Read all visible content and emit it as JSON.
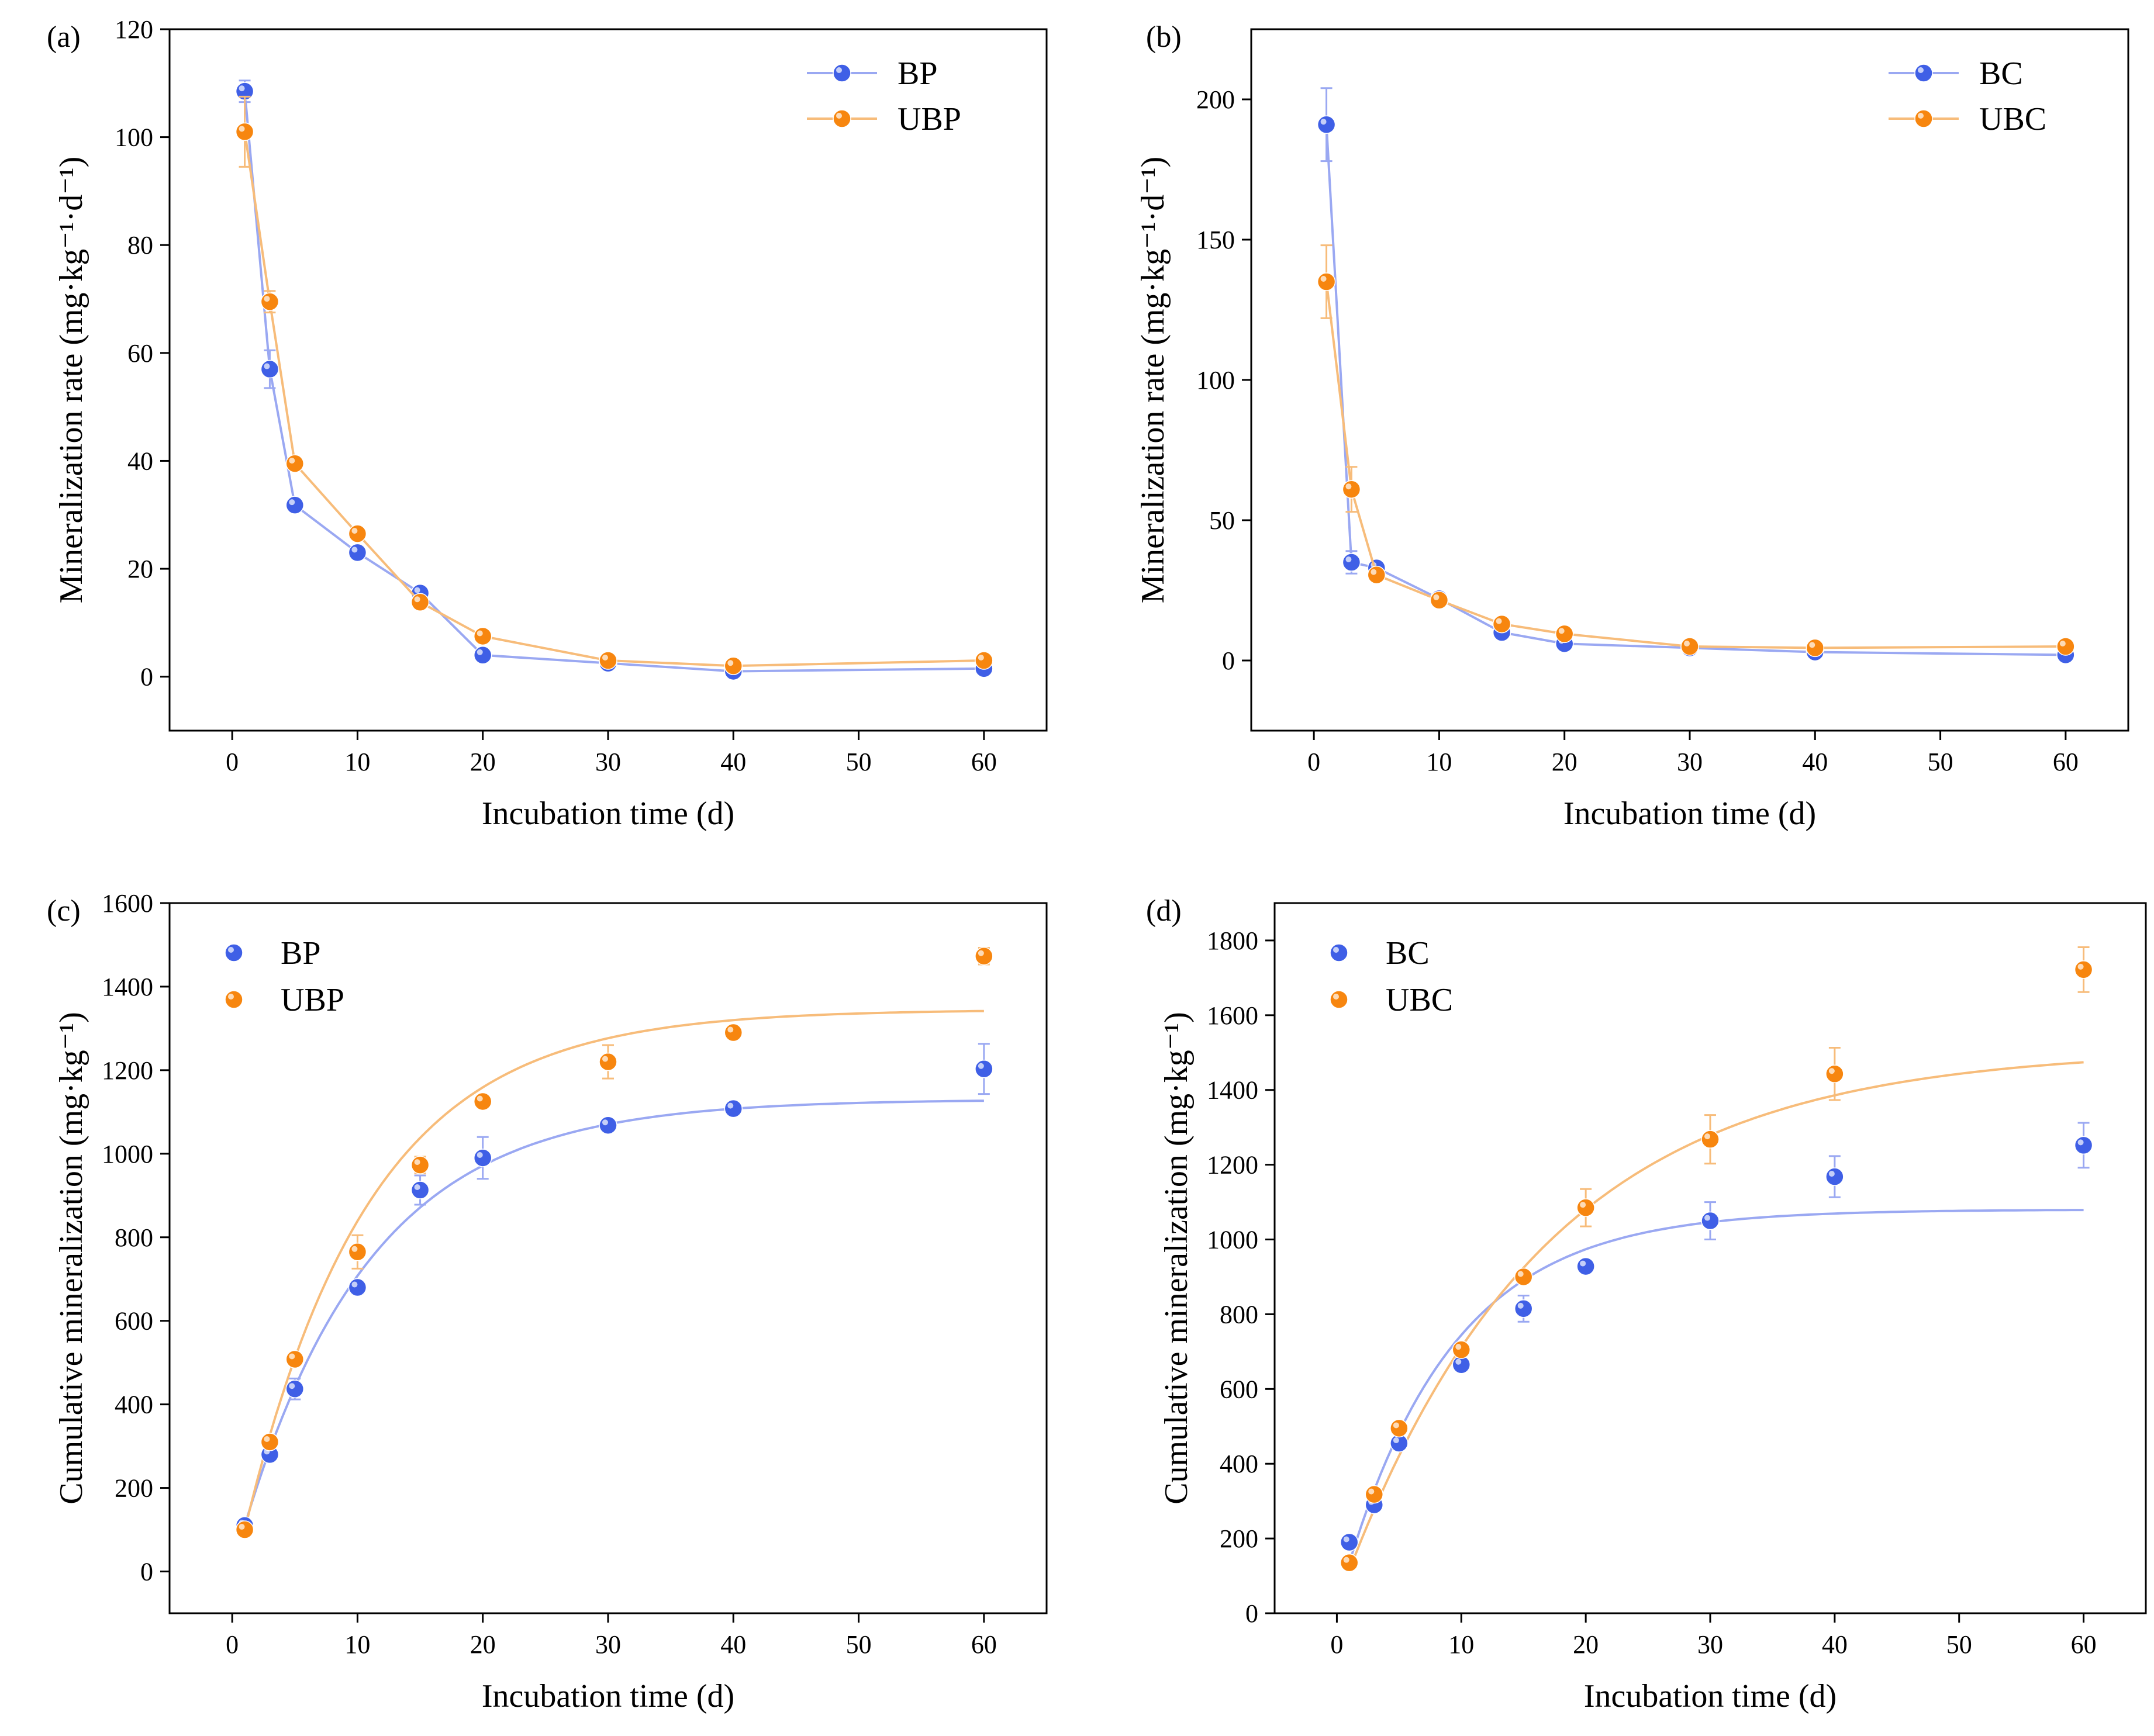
{
  "colors": {
    "blue": "#3f5fe6",
    "orange": "#f7860f",
    "blue_line": "#9aa8f2",
    "orange_line": "#f7bc7a",
    "axis": "#000000"
  },
  "chart_data": [
    {
      "type": "line",
      "panel_label": "(a)",
      "xlabel": "Incubation time (d)",
      "ylabel": "Mineralization rate (mg·kg⁻¹·d⁻¹)",
      "xlim": [
        -5,
        65
      ],
      "ylim": [
        -10,
        120
      ],
      "xticks": [
        0,
        10,
        20,
        30,
        40,
        50,
        60
      ],
      "yticks": [
        0,
        20,
        40,
        60,
        80,
        100,
        120
      ],
      "xtick_labels": [
        "0",
        "10",
        "20",
        "30",
        "40",
        "50",
        "60"
      ],
      "ytick_labels": [
        "0",
        "20",
        "40",
        "60",
        "80",
        "100",
        "120"
      ],
      "legend": [
        "BP",
        "UBP"
      ],
      "legend_position": "top-right",
      "legend_style": "line-marker",
      "series": [
        {
          "name": "BP",
          "color": "blue",
          "x": [
            1,
            3,
            5,
            10,
            15,
            20,
            30,
            40,
            60
          ],
          "y": [
            108.5,
            57,
            31.8,
            23,
            15.5,
            4,
            2.5,
            1,
            1.5
          ],
          "err": [
            2,
            3.5,
            1,
            1,
            0.8,
            0.5,
            0.3,
            0.3,
            0.4
          ]
        },
        {
          "name": "UBP",
          "color": "orange",
          "x": [
            1,
            3,
            5,
            10,
            15,
            20,
            30,
            40,
            60
          ],
          "y": [
            101,
            69.5,
            39.5,
            26.5,
            13.8,
            7.5,
            3,
            2,
            3
          ],
          "err": [
            6.5,
            2,
            1,
            1,
            0.8,
            0.5,
            0.3,
            0.3,
            0.4
          ]
        }
      ]
    },
    {
      "type": "line",
      "panel_label": "(b)",
      "xlabel": "Incubation time (d)",
      "ylabel": "Mineralization rate (mg·kg⁻¹·d⁻¹)",
      "xlim": [
        -5,
        65
      ],
      "ylim": [
        -25,
        225
      ],
      "xticks": [
        0,
        10,
        20,
        30,
        40,
        50,
        60
      ],
      "yticks": [
        0,
        50,
        100,
        150,
        200
      ],
      "xtick_labels": [
        "0",
        "10",
        "20",
        "30",
        "40",
        "50",
        "60"
      ],
      "ytick_labels": [
        "0",
        "50",
        "100",
        "150",
        "200"
      ],
      "legend": [
        "BC",
        "UBC"
      ],
      "legend_position": "top-right",
      "legend_style": "line-marker",
      "series": [
        {
          "name": "BC",
          "color": "blue",
          "x": [
            1,
            3,
            5,
            10,
            15,
            20,
            30,
            40,
            60
          ],
          "y": [
            191,
            35,
            33,
            22,
            10,
            6,
            4.5,
            3,
            2
          ],
          "err": [
            13,
            4,
            2,
            1,
            0.8,
            0.6,
            0.4,
            0.3,
            0.3
          ]
        },
        {
          "name": "UBC",
          "color": "orange",
          "x": [
            1,
            3,
            5,
            10,
            15,
            20,
            30,
            40,
            60
          ],
          "y": [
            135,
            61,
            30.5,
            21.5,
            13,
            9.5,
            5,
            4.5,
            5
          ],
          "err": [
            13,
            8,
            1,
            1,
            0.8,
            0.6,
            0.4,
            0.3,
            0.3
          ]
        }
      ]
    },
    {
      "type": "scatter",
      "panel_label": "(c)",
      "xlabel": "Incubation time (d)",
      "ylabel": "Cumulative mineralization (mg·kg⁻¹)",
      "xlim": [
        -5,
        65
      ],
      "ylim": [
        -100,
        1600
      ],
      "xticks": [
        0,
        10,
        20,
        30,
        40,
        50,
        60
      ],
      "yticks": [
        0,
        200,
        400,
        600,
        800,
        1000,
        1200,
        1400,
        1600
      ],
      "xtick_labels": [
        "0",
        "10",
        "20",
        "30",
        "40",
        "50",
        "60"
      ],
      "ytick_labels": [
        "0",
        "200",
        "400",
        "600",
        "800",
        "1000",
        "1200",
        "1400",
        "1600"
      ],
      "legend": [
        "BP",
        "UBP"
      ],
      "legend_position": "top-left",
      "legend_style": "marker",
      "fit_curves": [
        {
          "color": "blue",
          "C": 1130,
          "k": 0.098,
          "x0": 1,
          "y0": 110
        },
        {
          "color": "orange",
          "C": 1345,
          "k": 0.1,
          "x0": 1,
          "y0": 100
        }
      ],
      "series": [
        {
          "name": "BP",
          "color": "blue",
          "x": [
            1,
            3,
            5,
            10,
            15,
            20,
            30,
            40,
            60
          ],
          "y": [
            110,
            280,
            437,
            680,
            913,
            990,
            1068,
            1108,
            1203
          ],
          "err": [
            5,
            10,
            25,
            15,
            35,
            50,
            10,
            8,
            60
          ]
        },
        {
          "name": "UBP",
          "color": "orange",
          "x": [
            1,
            3,
            5,
            10,
            15,
            20,
            30,
            40,
            60
          ],
          "y": [
            100,
            310,
            508,
            765,
            973,
            1125,
            1220,
            1290,
            1473
          ],
          "err": [
            5,
            10,
            10,
            40,
            20,
            10,
            40,
            10,
            20
          ]
        }
      ]
    },
    {
      "type": "scatter",
      "panel_label": "(d)",
      "xlabel": "Incubation time (d)",
      "ylabel": "Cumulative mineralization (mg·kg⁻¹)",
      "xlim": [
        -5,
        65
      ],
      "ylim": [
        0,
        1900
      ],
      "xticks": [
        0,
        10,
        20,
        30,
        40,
        50,
        60
      ],
      "yticks": [
        0,
        200,
        400,
        600,
        800,
        1000,
        1200,
        1400,
        1600,
        1800
      ],
      "xtick_labels": [
        "0",
        "10",
        "20",
        "30",
        "40",
        "50",
        "60"
      ],
      "ytick_labels": [
        "0",
        "200",
        "400",
        "600",
        "800",
        "1000",
        "1200",
        "1400",
        "1600",
        "1800"
      ],
      "legend": [
        "BC",
        "UBC"
      ],
      "legend_position": "top-left",
      "legend_style": "marker",
      "fit_curves": [
        {
          "color": "blue",
          "C": 1080,
          "k": 0.115,
          "x0": 1,
          "y0": 135
        },
        {
          "color": "orange",
          "C": 1510,
          "k": 0.062,
          "x0": 1,
          "y0": 115
        }
      ],
      "series": [
        {
          "name": "BC",
          "color": "blue",
          "x": [
            1,
            3,
            5,
            10,
            15,
            20,
            30,
            40,
            60
          ],
          "y": [
            190,
            290,
            455,
            665,
            815,
            928,
            1050,
            1168,
            1252
          ],
          "err": [
            5,
            10,
            10,
            15,
            35,
            10,
            50,
            55,
            60
          ]
        },
        {
          "name": "UBC",
          "color": "orange",
          "x": [
            1,
            3,
            5,
            10,
            15,
            20,
            30,
            40,
            60
          ],
          "y": [
            135,
            318,
            495,
            705,
            900,
            1085,
            1268,
            1443,
            1722
          ],
          "err": [
            5,
            10,
            10,
            10,
            10,
            50,
            65,
            70,
            60
          ]
        }
      ]
    }
  ]
}
